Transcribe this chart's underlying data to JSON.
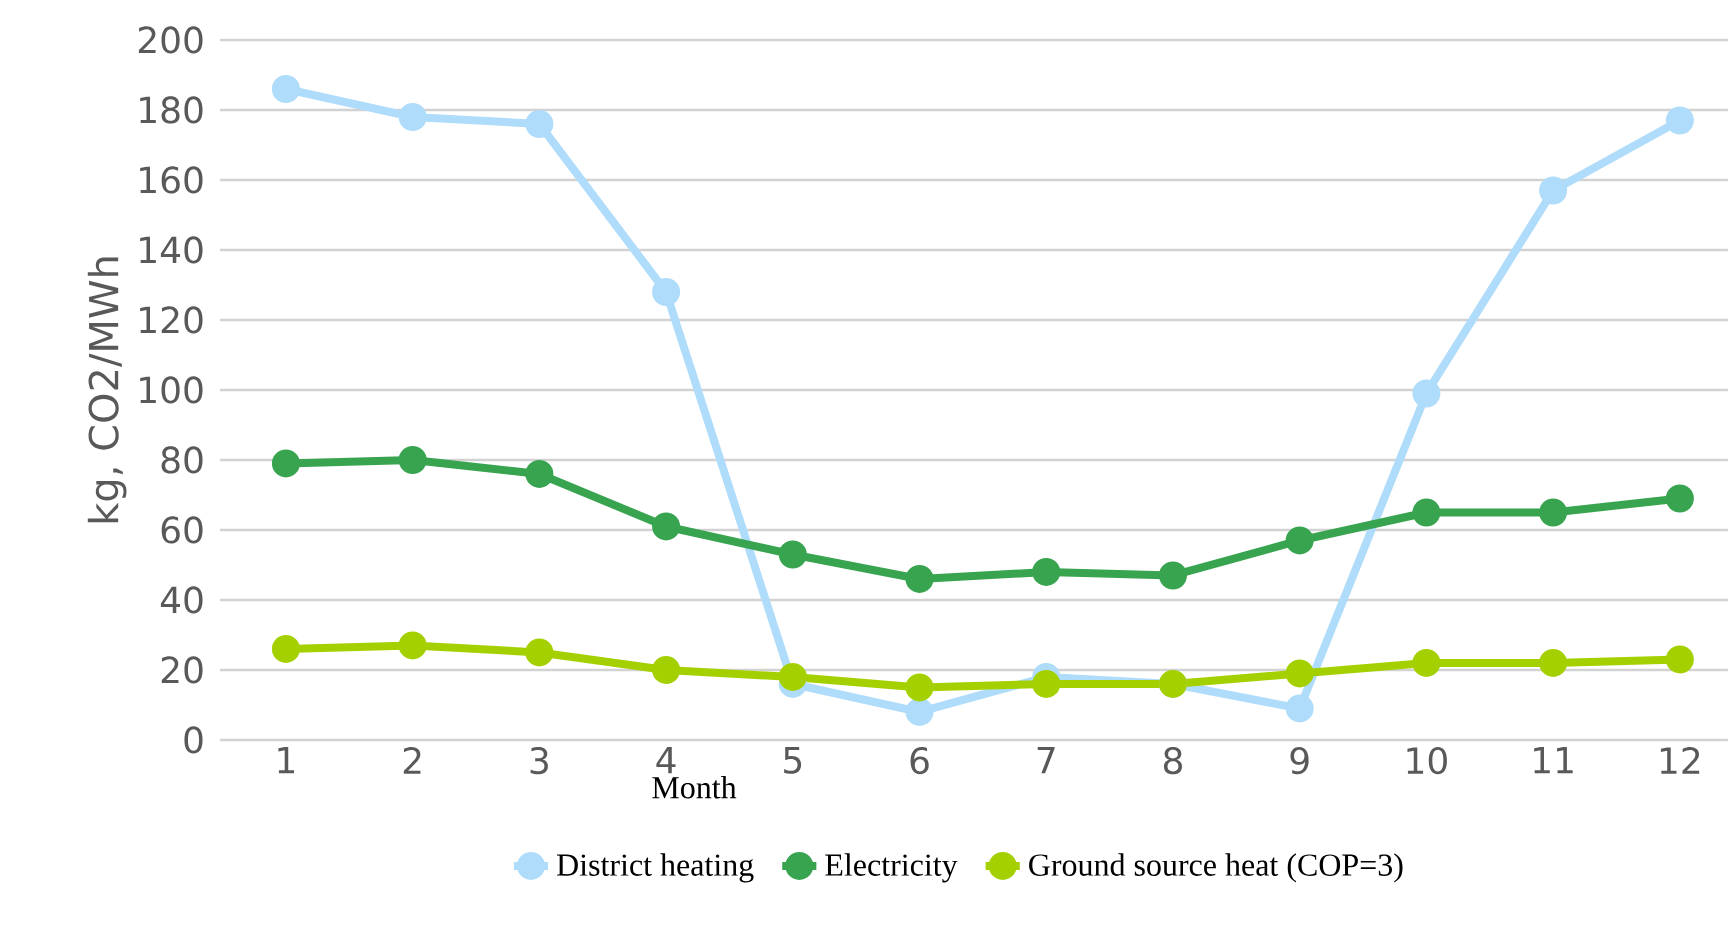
{
  "chart_data": {
    "type": "line",
    "xlabel": "Month",
    "ylabel": "kg, CO2/MWh",
    "categories": [
      "1",
      "2",
      "3",
      "4",
      "5",
      "6",
      "7",
      "8",
      "9",
      "10",
      "11",
      "12"
    ],
    "series": [
      {
        "name": "District heating",
        "color": "#afdcfb",
        "values": [
          186,
          178,
          176,
          128,
          16,
          8,
          18,
          16,
          9,
          99,
          157,
          177
        ]
      },
      {
        "name": "Electricity",
        "color": "#38a450",
        "values": [
          79,
          80,
          76,
          61,
          53,
          46,
          48,
          47,
          57,
          65,
          65,
          69
        ]
      },
      {
        "name": "Ground source heat (COP=3)",
        "color": "#a5d000",
        "values": [
          26,
          27,
          25,
          20,
          18,
          15,
          16,
          16,
          19,
          22,
          22,
          23
        ]
      }
    ],
    "ylim": [
      0,
      200
    ],
    "yticks": [
      0,
      20,
      40,
      60,
      80,
      100,
      120,
      140,
      160,
      180,
      200
    ],
    "grid": "y",
    "legend": "bottom",
    "marker": "circle",
    "line_style": "solid"
  }
}
